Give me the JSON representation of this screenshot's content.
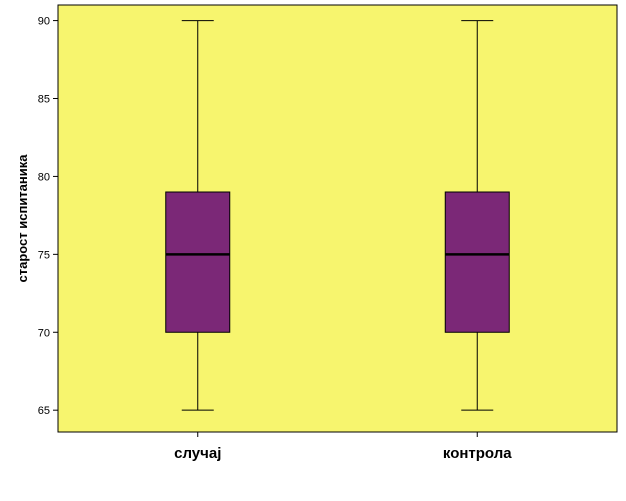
{
  "chart_data": {
    "type": "boxplot",
    "title": "",
    "xlabel": "",
    "ylabel": "старост испитаника",
    "ylim": [
      63.6,
      91.0
    ],
    "yticks": [
      65,
      70,
      75,
      80,
      85,
      90
    ],
    "grid": false,
    "legend": "none",
    "categories": [
      "случај",
      "контрола"
    ],
    "boxes": [
      {
        "category": "случај",
        "min": 65,
        "q1": 70,
        "median": 75,
        "q3": 79,
        "max": 90
      },
      {
        "category": "контрола",
        "min": 65,
        "q1": 70,
        "median": 75,
        "q3": 79,
        "max": 90
      }
    ],
    "colors": {
      "plot_background": "#f7f56e",
      "box_fill": "#7b2877",
      "line": "#000000"
    }
  }
}
